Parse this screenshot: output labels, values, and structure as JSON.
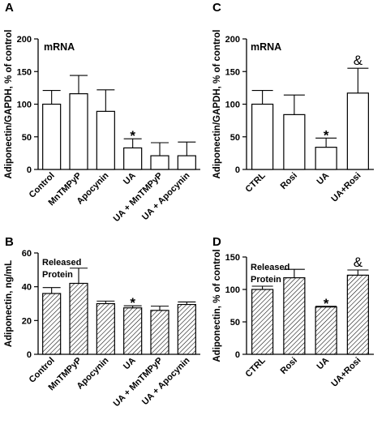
{
  "chart_data": [
    {
      "panel": "A",
      "type": "bar",
      "annotation": "mRNA",
      "ylabel": "Adiponectin/GAPDH, % of control",
      "ylim": [
        0,
        200
      ],
      "yticks": [
        0,
        50,
        100,
        150,
        200
      ],
      "bar_fill": "open",
      "categories": [
        "Control",
        "MnTMPyP",
        "Apocynin",
        "UA",
        "UA + MnTMPyP",
        "UA + Apocynin"
      ],
      "values": [
        100,
        116,
        89,
        33,
        21,
        21
      ],
      "errors": [
        21,
        28,
        33,
        14,
        20,
        21
      ],
      "markers": [
        "",
        "",
        "",
        "*",
        "",
        ""
      ]
    },
    {
      "panel": "C",
      "type": "bar",
      "annotation": "mRNA",
      "ylabel": "Adiponectin/GAPDH, % of control",
      "ylim": [
        0,
        200
      ],
      "yticks": [
        0,
        50,
        100,
        150,
        200
      ],
      "bar_fill": "open",
      "categories": [
        "CTRL",
        "Rosi",
        "UA",
        "UA+Rosi"
      ],
      "values": [
        100,
        84,
        34,
        117
      ],
      "errors": [
        21,
        30,
        14,
        38
      ],
      "markers": [
        "",
        "",
        "*",
        "&"
      ]
    },
    {
      "panel": "B",
      "type": "bar",
      "annotation": "Released Protein",
      "ylabel": "Adiponectin, ng/mL",
      "ylim": [
        0,
        60
      ],
      "yticks": [
        0,
        20,
        40,
        60
      ],
      "bar_fill": "hatched",
      "categories": [
        "Control",
        "MnTMPyP",
        "Apocynin",
        "UA",
        "UA + MnTMPyP",
        "UA + Apocynin"
      ],
      "values": [
        36,
        42,
        30,
        27.5,
        26,
        29.5
      ],
      "errors": [
        3.5,
        9,
        1.5,
        1.2,
        2.5,
        1.5
      ],
      "markers": [
        "",
        "",
        "",
        "*",
        "",
        ""
      ]
    },
    {
      "panel": "D",
      "type": "bar",
      "annotation": "Released Protein",
      "ylabel": "Adiponectin, % of control",
      "ylim": [
        0,
        150
      ],
      "yticks": [
        0,
        50,
        100,
        150
      ],
      "bar_fill": "hatched",
      "categories": [
        "CTRL",
        "Rosi",
        "UA",
        "UA+Rosi"
      ],
      "values": [
        100,
        118,
        73,
        122
      ],
      "errors": [
        5,
        13,
        1,
        8
      ],
      "markers": [
        "",
        "",
        "*",
        "&"
      ]
    }
  ]
}
